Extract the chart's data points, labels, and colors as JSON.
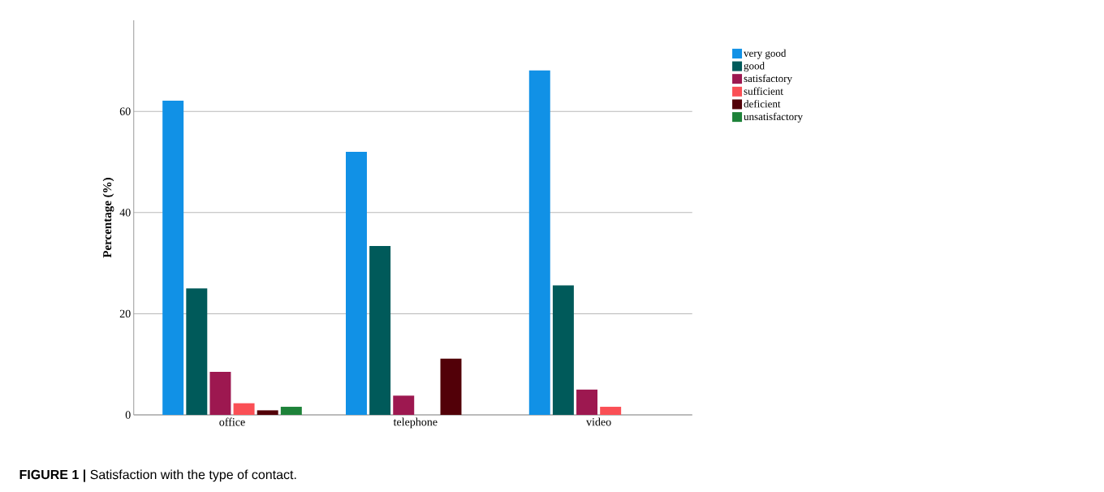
{
  "chart_data": {
    "type": "bar",
    "ylabel": "Percentage (%)",
    "categories": [
      "office",
      "telephone",
      "video"
    ],
    "series": [
      {
        "name": "very good",
        "color": "#1191e6",
        "values": [
          62.1,
          52,
          68.1
        ]
      },
      {
        "name": "good",
        "color": "#005a5a",
        "values": [
          25,
          33.4,
          25.6
        ]
      },
      {
        "name": "satisfactory",
        "color": "#9d1850",
        "values": [
          8.5,
          3.8,
          5.0
        ]
      },
      {
        "name": "sufficient",
        "color": "#fa4f55",
        "values": [
          2.3,
          0,
          1.6
        ]
      },
      {
        "name": "deficient",
        "color": "#520008",
        "values": [
          0.9,
          11.1,
          0
        ]
      },
      {
        "name": "unsatisfactory",
        "color": "#1d8239",
        "values": [
          1.6,
          0,
          0
        ]
      }
    ],
    "ylim": [
      0,
      78
    ],
    "yticks": [
      0,
      20,
      40,
      60
    ],
    "grid": "y",
    "legend": "top right",
    "annotations": [
      "**FIGURE 1 |** Satisfaction with the type of contact."
    ]
  }
}
